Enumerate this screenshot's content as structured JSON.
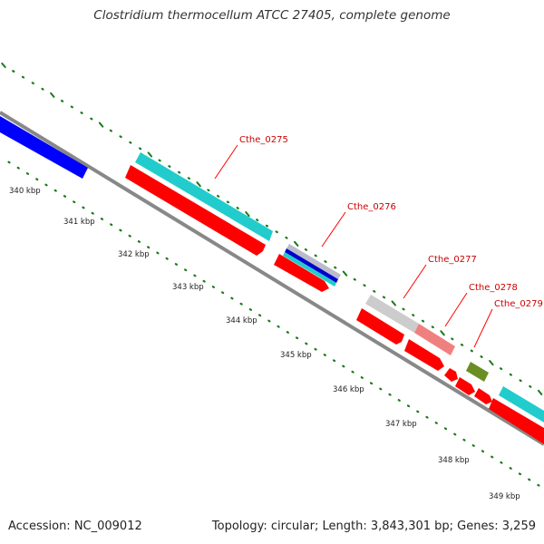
{
  "title": "Clostridium thermocellum ATCC 27405, complete genome",
  "accession": "Accession: NC_009012",
  "topology": "Topology: circular; Length: 3,843,301 bp; Genes: 3,259",
  "ruler_labels": [
    "340 kbp",
    "341 kbp",
    "342 kbp",
    "343 kbp",
    "344 kbp",
    "345 kbp",
    "346 kbp",
    "347 kbp",
    "348 kbp",
    "349 kbp"
  ],
  "gene_labels": [
    "Cthe_0275",
    "Cthe_0276",
    "Cthe_0277",
    "Cthe_0278",
    "Cthe_0279"
  ],
  "colors": {
    "backbone": "#888888",
    "cds": "#ff0000",
    "ruler": "#1a7a1a",
    "label": "#cc0000",
    "label_line": "#ff0000",
    "blue": "#0000ff",
    "cyan": "#22cccc",
    "grey": "#cccccc",
    "pink": "#f08080",
    "olive": "#6b8e23"
  }
}
